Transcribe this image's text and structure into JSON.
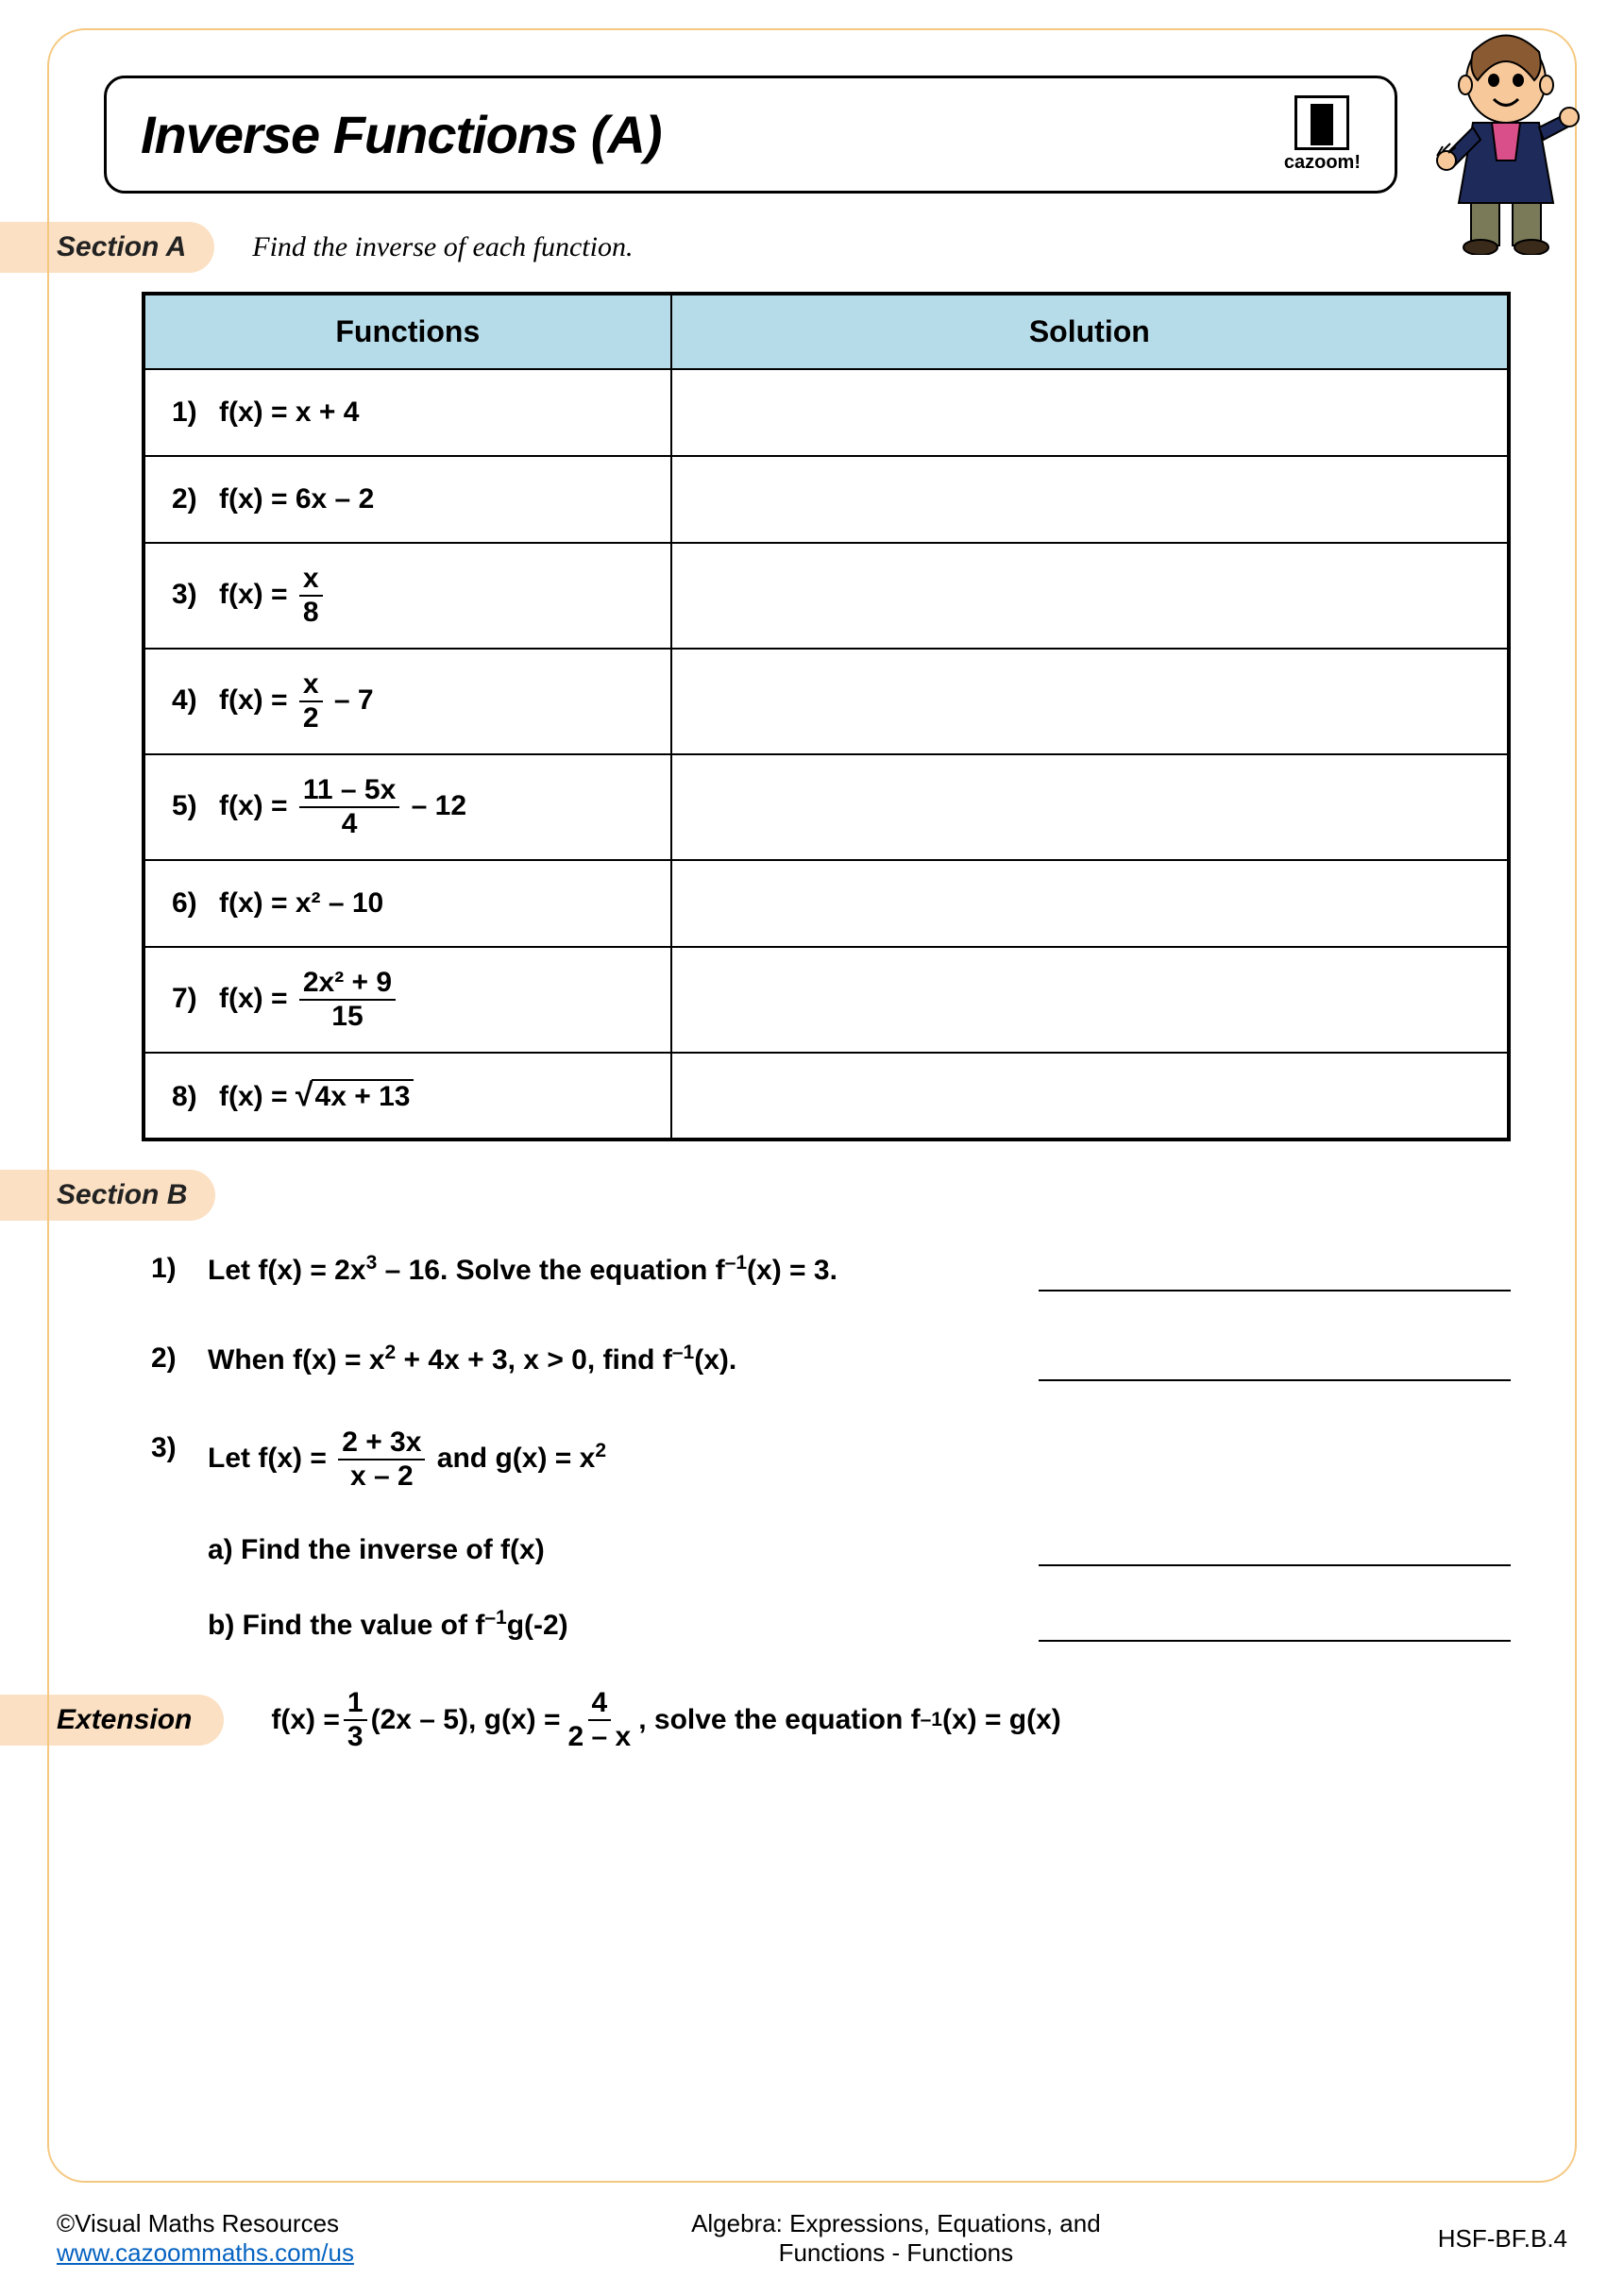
{
  "title": "Inverse Functions (A)",
  "brand": "cazoom!",
  "sectionA": {
    "label": "Section A",
    "instruction": "Find the inverse of each function.",
    "headers": {
      "functions": "Functions",
      "solution": "Solution"
    },
    "rows": [
      {
        "num": "1)",
        "prefix": "f(x) = x + 4"
      },
      {
        "num": "2)",
        "prefix": "f(x) = 6x – 2"
      },
      {
        "num": "3)",
        "prefix": "f(x) = ",
        "frac_num": "x",
        "frac_den": "8",
        "suffix": ""
      },
      {
        "num": "4)",
        "prefix": "f(x) = ",
        "frac_num": "x",
        "frac_den": "2",
        "suffix": " – 7"
      },
      {
        "num": "5)",
        "prefix": "f(x) = ",
        "frac_num": "11 – 5x",
        "frac_den": "4",
        "suffix": " – 12"
      },
      {
        "num": "6)",
        "prefix": "f(x) = x² – 10"
      },
      {
        "num": "7)",
        "prefix": "f(x) = ",
        "frac_num": "2x² + 9",
        "frac_den": "15",
        "suffix": ""
      },
      {
        "num": "8)",
        "prefix": "f(x) = ",
        "sqrt": "4x + 13"
      }
    ]
  },
  "sectionB": {
    "label": "Section B",
    "q1": {
      "num": "1)",
      "text_before": "Let f(x) = 2x",
      "sup1": "3",
      "text_mid": " – 16. Solve the equation f",
      "sup2": "–1",
      "text_after": "(x) = 3."
    },
    "q2": {
      "num": "2)",
      "text_before": "When f(x) = x",
      "sup1": "2",
      "text_mid": " + 4x + 3, x > 0, find f",
      "sup2": "–1",
      "text_after": "(x)."
    },
    "q3": {
      "num": "3)",
      "line1_before": "Let f(x) = ",
      "frac_num": "2 + 3x",
      "frac_den": "x – 2",
      "line1_mid": "  and  g(x) = x",
      "line1_sup": "2",
      "a": "a) Find the inverse of f(x)",
      "b_before": "b) Find the value of f",
      "b_sup": "–1",
      "b_after": "g(-2)"
    }
  },
  "extension": {
    "label": "Extension",
    "t1": "f(x) = ",
    "frac1_num": "1",
    "frac1_den": "3",
    "t2": "(2x – 5), g(x) = ",
    "frac2_num": "4",
    "frac2_den": "2 – x",
    "t3": " ,  solve the equation f",
    "sup": "–1",
    "t4": "(x) = g(x)"
  },
  "footer": {
    "copyright": "©Visual Maths Resources",
    "url": "www.cazoommaths.com/us",
    "center1": "Algebra: Expressions, Equations, and",
    "center2": "Functions - Functions",
    "standard": "HSF-BF.B.4"
  },
  "colors": {
    "border": "#f5c880",
    "badge_bg": "#fbe0c3",
    "table_header_bg": "#b7dce9",
    "link": "#0563c1"
  }
}
